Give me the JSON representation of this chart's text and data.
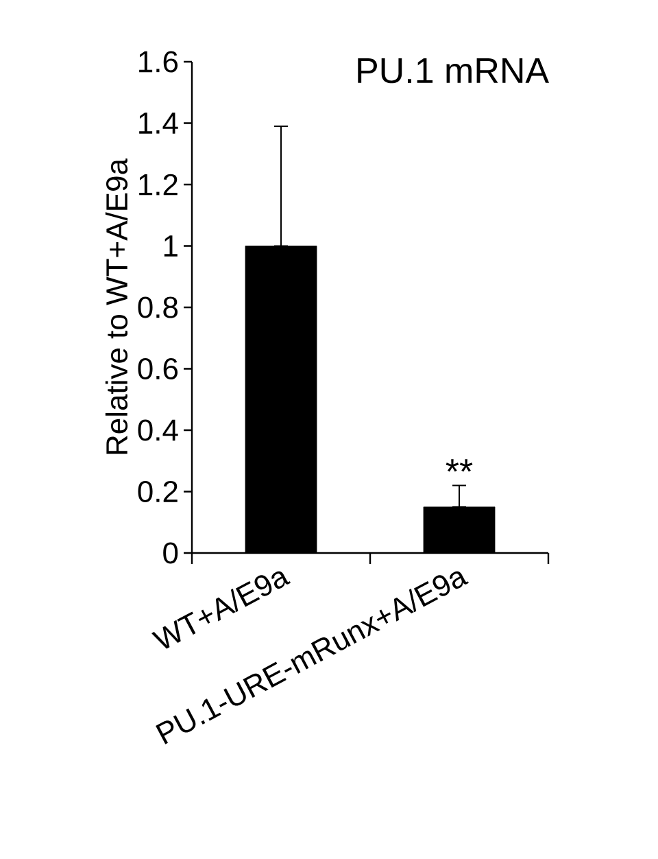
{
  "chart_data": {
    "type": "bar",
    "title": "PU.1 mRNA",
    "ylabel": "Relative to WT+A/E9a",
    "categories": [
      "WT+A/E9a",
      "PU.1-URE-mRunx+A/E9a"
    ],
    "values": [
      1.0,
      0.15
    ],
    "errors": [
      [
        1.0,
        1.39
      ],
      [
        0.15,
        0.22
      ]
    ],
    "color": "#000000",
    "ylim": [
      0,
      1.6
    ],
    "yticks": [
      0,
      0.2,
      0.4,
      0.6,
      0.8,
      1,
      1.2,
      1.4,
      1.6
    ],
    "annotations": [
      {
        "text": "**",
        "x": "PU.1-URE-mRunx+A/E9a",
        "y": 0.22
      }
    ]
  }
}
